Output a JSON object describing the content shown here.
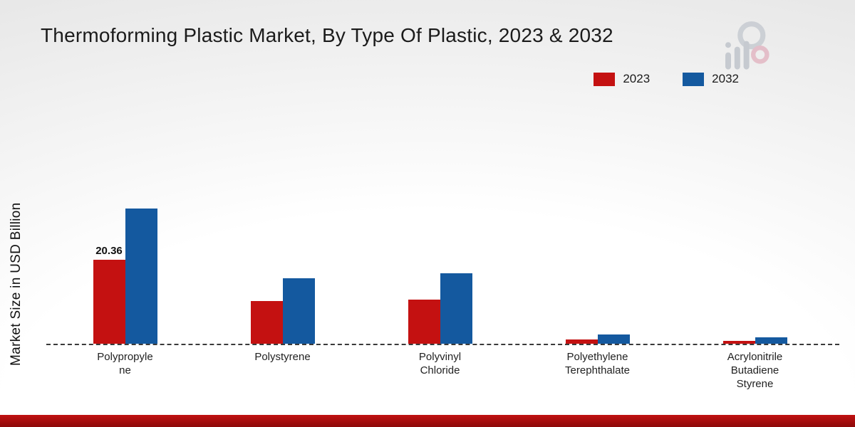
{
  "title": "Thermoforming Plastic Market, By Type Of Plastic, 2023 & 2032",
  "ylabel": "Market Size in USD Billion",
  "legend": [
    {
      "label": "2023",
      "color": "#c41111"
    },
    {
      "label": "2032",
      "color": "#14599f"
    }
  ],
  "chart_data": {
    "type": "bar",
    "title": "Thermoforming Plastic Market, By Type Of Plastic, 2023 & 2032",
    "xlabel": "",
    "ylabel": "Market Size in USD Billion",
    "categories": [
      "Polypropylene",
      "Polystyrene",
      "Polyvinyl Chloride",
      "Polyethylene Terephthalate",
      "Acrylonitrile Butadiene Styrene"
    ],
    "category_lines": [
      [
        "Polypropyle",
        "ne"
      ],
      [
        "Polystyrene"
      ],
      [
        "Polyvinyl",
        "Chloride"
      ],
      [
        "Polyethylene",
        "Terephthalate"
      ],
      [
        "Acrylonitrile",
        "Butadiene",
        "Styrene"
      ]
    ],
    "series": [
      {
        "name": "2023",
        "color": "#c41111",
        "values": [
          20.36,
          10.4,
          10.7,
          1.0,
          0.7
        ]
      },
      {
        "name": "2032",
        "color": "#14599f",
        "values": [
          32.8,
          15.9,
          17.1,
          2.3,
          1.6
        ]
      }
    ],
    "data_labels": [
      "20.36",
      null,
      null,
      null,
      null
    ],
    "ylim": [
      0,
      35
    ],
    "grid": false,
    "legend_position": "top-right",
    "baseline_style": "dashed"
  }
}
